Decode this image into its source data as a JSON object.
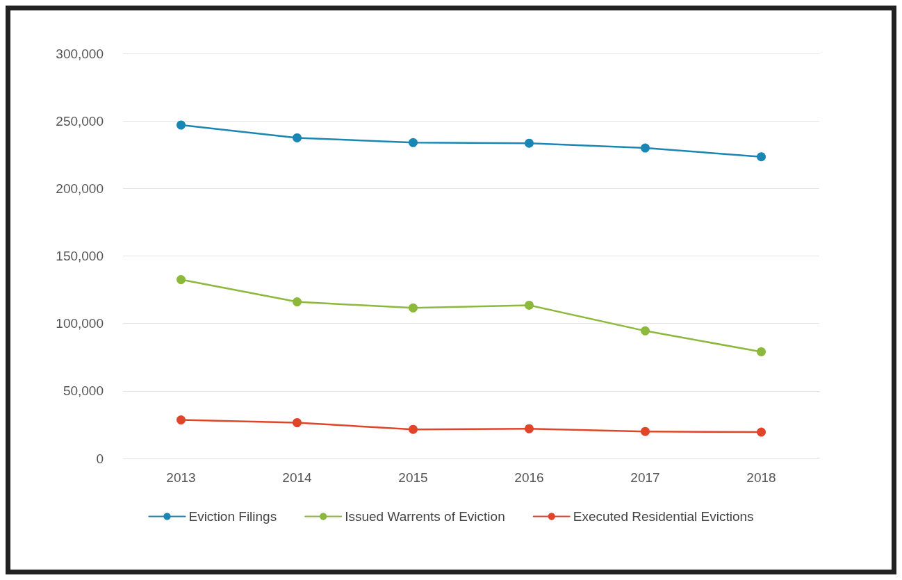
{
  "chart_data": {
    "type": "line",
    "categories": [
      "2013",
      "2014",
      "2015",
      "2016",
      "2017",
      "2018"
    ],
    "series": [
      {
        "name": "Eviction Filings",
        "color": "#1a86b4",
        "values": [
          247000,
          237500,
          234000,
          233500,
          230000,
          223500
        ]
      },
      {
        "name": "Issued Warrents of Eviction",
        "color": "#8cb83c",
        "values": [
          132500,
          116000,
          111500,
          113500,
          94500,
          79000
        ]
      },
      {
        "name": "Executed Residential Evictions",
        "color": "#e0452a",
        "values": [
          28500,
          26500,
          21500,
          22000,
          20000,
          19500
        ]
      }
    ],
    "ylim": [
      0,
      300000
    ],
    "yticks": [
      0,
      {
        "value": 50000,
        "label": "50,000"
      },
      {
        "value": 100000,
        "label": "100,000"
      },
      {
        "value": 150000,
        "label": "150,000"
      },
      {
        "value": 200000,
        "label": "200,000"
      },
      {
        "value": 250000,
        "label": "250,000"
      },
      {
        "value": 300000,
        "label": "300,000"
      }
    ],
    "grid": "y",
    "legend": "bottom",
    "marker": "circle",
    "line_style": "solid"
  }
}
